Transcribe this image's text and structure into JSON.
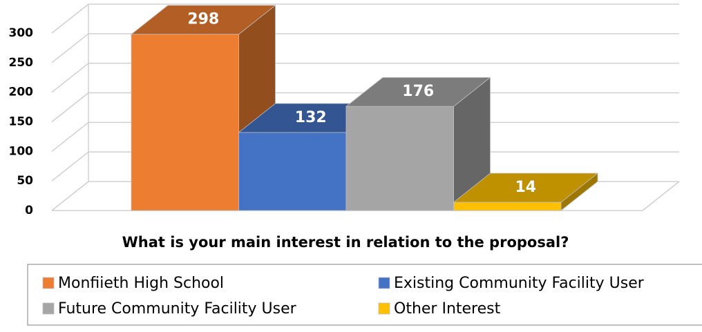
{
  "chart_data": {
    "type": "bar3d",
    "title": "What is your main interest in relation to the proposal?",
    "series": [
      {
        "name": "Monfiieth High School",
        "color": "#ED7D31",
        "values": [
          298
        ]
      },
      {
        "name": "Existing Community Facility User",
        "color": "#4472C4",
        "values": [
          132
        ]
      },
      {
        "name": "Future Community Facility User",
        "color": "#A5A5A5",
        "values": [
          176
        ]
      },
      {
        "name": "Other Interest",
        "color": "#FFC000",
        "values": [
          14
        ]
      }
    ],
    "ylim": [
      0,
      300
    ],
    "yticks": [
      0,
      50,
      100,
      150,
      200,
      250,
      300
    ],
    "grid": true,
    "legend": "bottom"
  }
}
